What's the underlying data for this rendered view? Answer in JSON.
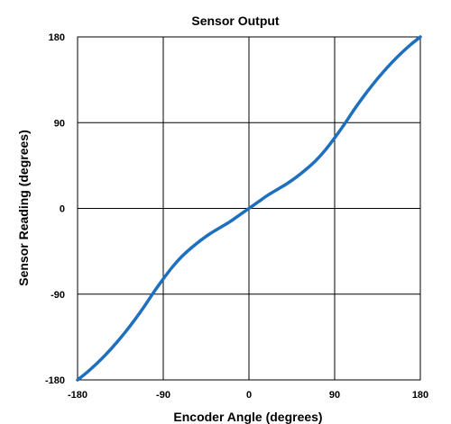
{
  "chart_data": {
    "type": "line",
    "title": "Sensor Output",
    "xlabel": "Encoder Angle (degrees)",
    "ylabel": "Sensor Reading (degrees)",
    "xlim": [
      -180,
      180
    ],
    "ylim": [
      -180,
      180
    ],
    "xticks": [
      -180,
      -90,
      0,
      90,
      180
    ],
    "yticks": [
      -180,
      -90,
      0,
      90,
      180
    ],
    "xtick_labels": [
      "-180",
      "-90",
      "0",
      "90",
      "180"
    ],
    "ytick_labels": [
      "-180",
      "-90",
      "0",
      "90",
      "180"
    ],
    "grid": true,
    "legend": "none",
    "series": [
      {
        "color": "#1f6fbf",
        "x": [
          -180,
          -170,
          -160,
          -150,
          -140,
          -130,
          -120,
          -110,
          -100,
          -90,
          -80,
          -70,
          -60,
          -50,
          -40,
          -30,
          -20,
          -10,
          0,
          10,
          20,
          30,
          40,
          50,
          60,
          70,
          80,
          90,
          100,
          110,
          120,
          130,
          140,
          150,
          160,
          170,
          180
        ],
        "y": [
          -180,
          -172,
          -163,
          -153,
          -142,
          -130,
          -117,
          -103,
          -88,
          -74,
          -61,
          -50,
          -41,
          -33,
          -26,
          -20,
          -14,
          -7,
          0,
          7,
          14,
          20,
          26,
          33,
          41,
          50,
          61,
          74,
          88,
          103,
          117,
          130,
          142,
          153,
          163,
          172,
          180
        ]
      }
    ]
  },
  "colors": {
    "line": "#1f6fbf",
    "grid": "#000000",
    "frame": "#000000",
    "background": "#ffffff"
  }
}
